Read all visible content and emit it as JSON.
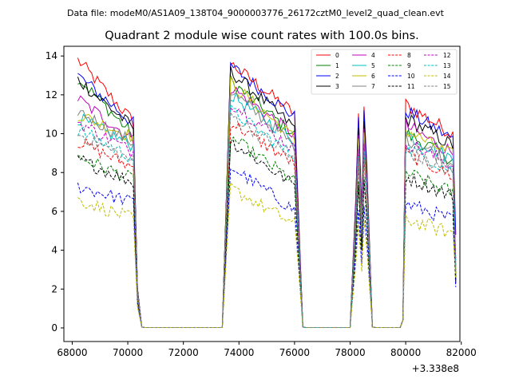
{
  "figure": {
    "suptitle": "Data file: modeM0/AS1A09_138T04_9000003776_26172cztM0_level2_quad_clean.evt"
  },
  "chart_data": {
    "type": "line",
    "title": "Quadrant 2 module wise count rates with 100.0s bins.",
    "xlabel": "",
    "ylabel": "",
    "x_offset_label": "+3.338e8",
    "xlim": [
      67700,
      81950
    ],
    "ylim": [
      -0.7,
      14.5
    ],
    "xticks": [
      68000,
      70000,
      72000,
      74000,
      76000,
      78000,
      80000,
      82000
    ],
    "xtick_labels": [
      "68000",
      "70000",
      "72000",
      "74000",
      "76000",
      "78000",
      "80000",
      "82000"
    ],
    "yticks": [
      0,
      2,
      4,
      6,
      8,
      10,
      12,
      14
    ],
    "ytick_labels": [
      "0",
      "2",
      "4",
      "6",
      "8",
      "10",
      "12",
      "14"
    ],
    "legend_position": "top-right",
    "segments": [
      {
        "start": 68200,
        "end": 70200,
        "fall_end": 70500
      },
      {
        "rise_start": 73500,
        "start": 73700,
        "end": 76000,
        "fall_end": 76300
      },
      {
        "rise_start": 78100,
        "start": 78200,
        "peak": 78500,
        "end": 78600,
        "fall_end": 78800
      },
      {
        "rise_start": 79800,
        "start": 80000,
        "end": 81800
      }
    ],
    "series": [
      {
        "name": "0",
        "color": "#ff0000",
        "dash": "solid",
        "start": 13.8,
        "s1": 13.6,
        "s2": 12.0,
        "s3": 11.5,
        "end": 2.4
      },
      {
        "name": "1",
        "color": "#008000",
        "dash": "solid",
        "start": 12.9,
        "s1": 12.7,
        "s2": 10.8,
        "s3": 10.0,
        "end": 2.6
      },
      {
        "name": "2",
        "color": "#0000ff",
        "dash": "solid",
        "start": 13.0,
        "s1": 13.5,
        "s2": 11.8,
        "s3": 11.2,
        "end": 4.8
      },
      {
        "name": "3",
        "color": "#000000",
        "dash": "solid",
        "start": 12.8,
        "s1": 13.2,
        "s2": 11.2,
        "s3": 10.8,
        "end": 2.3
      },
      {
        "name": "4",
        "color": "#bf00bf",
        "dash": "solid",
        "start": 11.8,
        "s1": 12.4,
        "s2": 10.8,
        "s3": 10.4,
        "end": 3.2
      },
      {
        "name": "5",
        "color": "#00bfbf",
        "dash": "solid",
        "start": 10.8,
        "s1": 12.0,
        "s2": 10.5,
        "s3": 10.0,
        "end": 2.8
      },
      {
        "name": "6",
        "color": "#bfbf00",
        "dash": "solid",
        "start": 11.0,
        "s1": 12.6,
        "s2": 10.6,
        "s3": 10.2,
        "end": 3.0
      },
      {
        "name": "7",
        "color": "#808080",
        "dash": "solid",
        "start": 11.2,
        "s1": 12.2,
        "s2": 10.2,
        "s3": 9.8,
        "end": 2.9
      },
      {
        "name": "8",
        "color": "#ff0000",
        "dash": "dashed",
        "start": 9.6,
        "s1": 10.6,
        "s2": 9.2,
        "s3": 9.0,
        "end": 3.6
      },
      {
        "name": "9",
        "color": "#008000",
        "dash": "dashed",
        "start": 8.8,
        "s1": 9.8,
        "s2": 8.2,
        "s3": 8.0,
        "end": 2.7
      },
      {
        "name": "10",
        "color": "#0000ff",
        "dash": "dashed",
        "start": 7.3,
        "s1": 8.3,
        "s2": 6.6,
        "s3": 6.4,
        "end": 2.1
      },
      {
        "name": "11",
        "color": "#000000",
        "dash": "dashed",
        "start": 8.7,
        "s1": 9.6,
        "s2": 8.0,
        "s3": 7.8,
        "end": 2.5
      },
      {
        "name": "12",
        "color": "#bf00bf",
        "dash": "dashed",
        "start": 10.6,
        "s1": 11.6,
        "s2": 10.0,
        "s3": 9.6,
        "end": 3.4
      },
      {
        "name": "13",
        "color": "#00bfbf",
        "dash": "dashed",
        "start": 10.2,
        "s1": 11.2,
        "s2": 9.6,
        "s3": 9.3,
        "end": 3.1
      },
      {
        "name": "14",
        "color": "#bfbf00",
        "dash": "dashed",
        "start": 6.6,
        "s1": 7.2,
        "s2": 5.8,
        "s3": 5.6,
        "end": 2.6
      },
      {
        "name": "15",
        "color": "#808080",
        "dash": "dashed",
        "start": 10.0,
        "s1": 11.0,
        "s2": 9.4,
        "s3": 9.1,
        "end": 2.8
      }
    ]
  }
}
